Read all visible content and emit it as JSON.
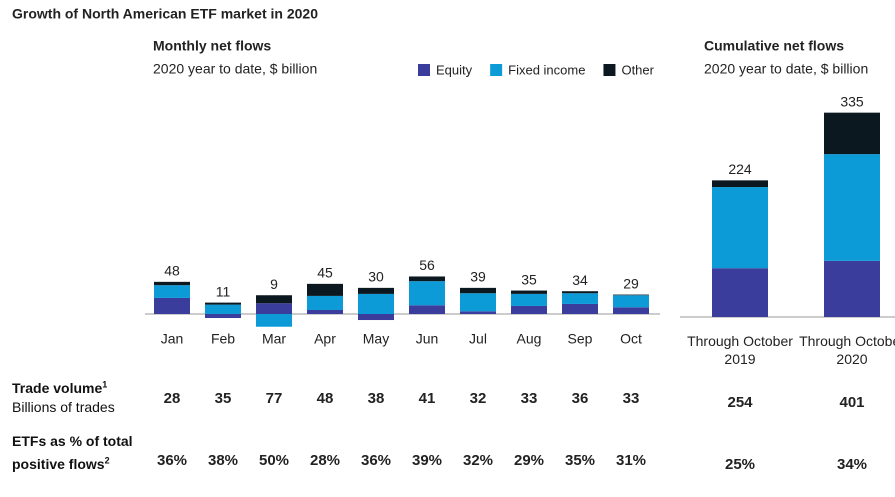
{
  "title": "Growth of North American ETF market in 2020",
  "chart_data": [
    {
      "type": "bar",
      "stacked": true,
      "title": "Monthly net flows",
      "subtitle": "2020 year to date, $ billion",
      "categories": [
        "Jan",
        "Feb",
        "Mar",
        "Apr",
        "May",
        "Jun",
        "Jul",
        "Aug",
        "Sep",
        "Oct"
      ],
      "series": [
        {
          "name": "Equity",
          "color": "#3b3d9c",
          "values": [
            24,
            -6,
            16,
            6,
            -9,
            13,
            4,
            12,
            15,
            10
          ]
        },
        {
          "name": "Fixed income",
          "color": "#0d9bd7",
          "values": [
            19,
            14,
            -19,
            21,
            30,
            36,
            27,
            18,
            16,
            18
          ]
        },
        {
          "name": "Other",
          "color": "#0c1820",
          "values": [
            5,
            3,
            12,
            18,
            9,
            7,
            8,
            5,
            3,
            1
          ]
        }
      ],
      "totals": [
        48,
        11,
        9,
        45,
        30,
        56,
        39,
        35,
        34,
        29
      ]
    },
    {
      "type": "bar",
      "stacked": true,
      "title": "Cumulative net flows",
      "subtitle": "2020 year to date, $ billion",
      "categories": [
        "Through October 2019",
        "Through October 2020"
      ],
      "series": [
        {
          "name": "Equity",
          "color": "#3b3d9c",
          "values": [
            80,
            92
          ]
        },
        {
          "name": "Fixed income",
          "color": "#0d9bd7",
          "values": [
            133,
            175
          ]
        },
        {
          "name": "Other",
          "color": "#0c1820",
          "values": [
            11,
            68
          ]
        }
      ],
      "totals": [
        224,
        335
      ]
    }
  ],
  "table": {
    "rows": [
      {
        "label": "Trade volume",
        "note": "1",
        "sublabel": "Billions of trades",
        "cells": [
          "28",
          "35",
          "77",
          "48",
          "38",
          "41",
          "32",
          "33",
          "36",
          "33",
          "254",
          "401"
        ]
      },
      {
        "label": "ETFs as % of total positive flows",
        "note": "2",
        "cells": [
          "36%",
          "38%",
          "50%",
          "28%",
          "36%",
          "39%",
          "32%",
          "29%",
          "35%",
          "31%",
          "25%",
          "34%"
        ]
      }
    ]
  }
}
